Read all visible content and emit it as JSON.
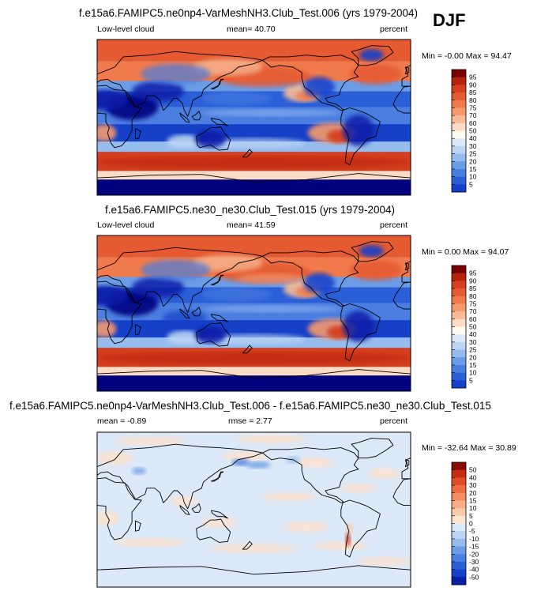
{
  "season": "DJF",
  "colors": {
    "map_colors": [
      "#00007f",
      "#0a1ea8",
      "#1540c8",
      "#2a5fd8",
      "#4a7ee0",
      "#6b9de6",
      "#95bcee",
      "#bcd5f4",
      "#dce9f8",
      "#fdfaf0",
      "#fbdcc4",
      "#f8bb96",
      "#f59a6e",
      "#f07a4c",
      "#e55a30",
      "#d53e1e",
      "#b8230e",
      "#7a0000"
    ],
    "diff_colors": [
      "#00007f",
      "#0a1ea8",
      "#1540c8",
      "#2a5fd8",
      "#4a7ee0",
      "#6b9de6",
      "#95bcee",
      "#bcd5f4",
      "#dce9f8",
      "#fde3d0",
      "#fbcaa8",
      "#f8ad84",
      "#f58d60",
      "#ee6c40",
      "#df4c26",
      "#c42d14",
      "#8a0a00"
    ]
  },
  "chart_data": [
    {
      "type": "heatmap",
      "title": "f.e15a6.FAMIPC5.ne0np4-VarMeshNH3.Club_Test.006 (yrs 1979-2004)",
      "left_label": "Low-level cloud",
      "center_label": "mean=  40.70",
      "right_label": "percent",
      "minmax_label": "Min = -0.00 Max = 94.47",
      "mean": 40.7,
      "min": -0.0,
      "max": 94.47,
      "colorbar_levels": [
        "95",
        "90",
        "85",
        "80",
        "75",
        "70",
        "60",
        "50",
        "40",
        "30",
        "25",
        "20",
        "15",
        "10",
        "5"
      ]
    },
    {
      "type": "heatmap",
      "title": "f.e15a6.FAMIPC5.ne30_ne30.Club_Test.015 (yrs 1979-2004)",
      "left_label": "Low-level cloud",
      "center_label": "mean=  41.59",
      "right_label": "percent",
      "minmax_label": "Min =  0.00 Max = 94.07",
      "mean": 41.59,
      "min": 0.0,
      "max": 94.07,
      "colorbar_levels": [
        "95",
        "90",
        "85",
        "80",
        "75",
        "70",
        "60",
        "50",
        "40",
        "30",
        "25",
        "20",
        "15",
        "10",
        "5"
      ]
    },
    {
      "type": "heatmap",
      "title": "f.e15a6.FAMIPC5.ne0np4-VarMeshNH3.Club_Test.006 - f.e15a6.FAMIPC5.ne30_ne30.Club_Test.015",
      "left_label": "mean = -0.89",
      "center_label": "rmse =  2.77",
      "right_label": "percent",
      "minmax_label": "Min = -32.64 Max = 30.89",
      "mean": -0.89,
      "rmse": 2.77,
      "min": -32.64,
      "max": 30.89,
      "colorbar_levels": [
        "50",
        "40",
        "30",
        "20",
        "15",
        "10",
        "5",
        "0",
        "-5",
        "-10",
        "-15",
        "-20",
        "-30",
        "-40",
        "-50"
      ]
    }
  ]
}
